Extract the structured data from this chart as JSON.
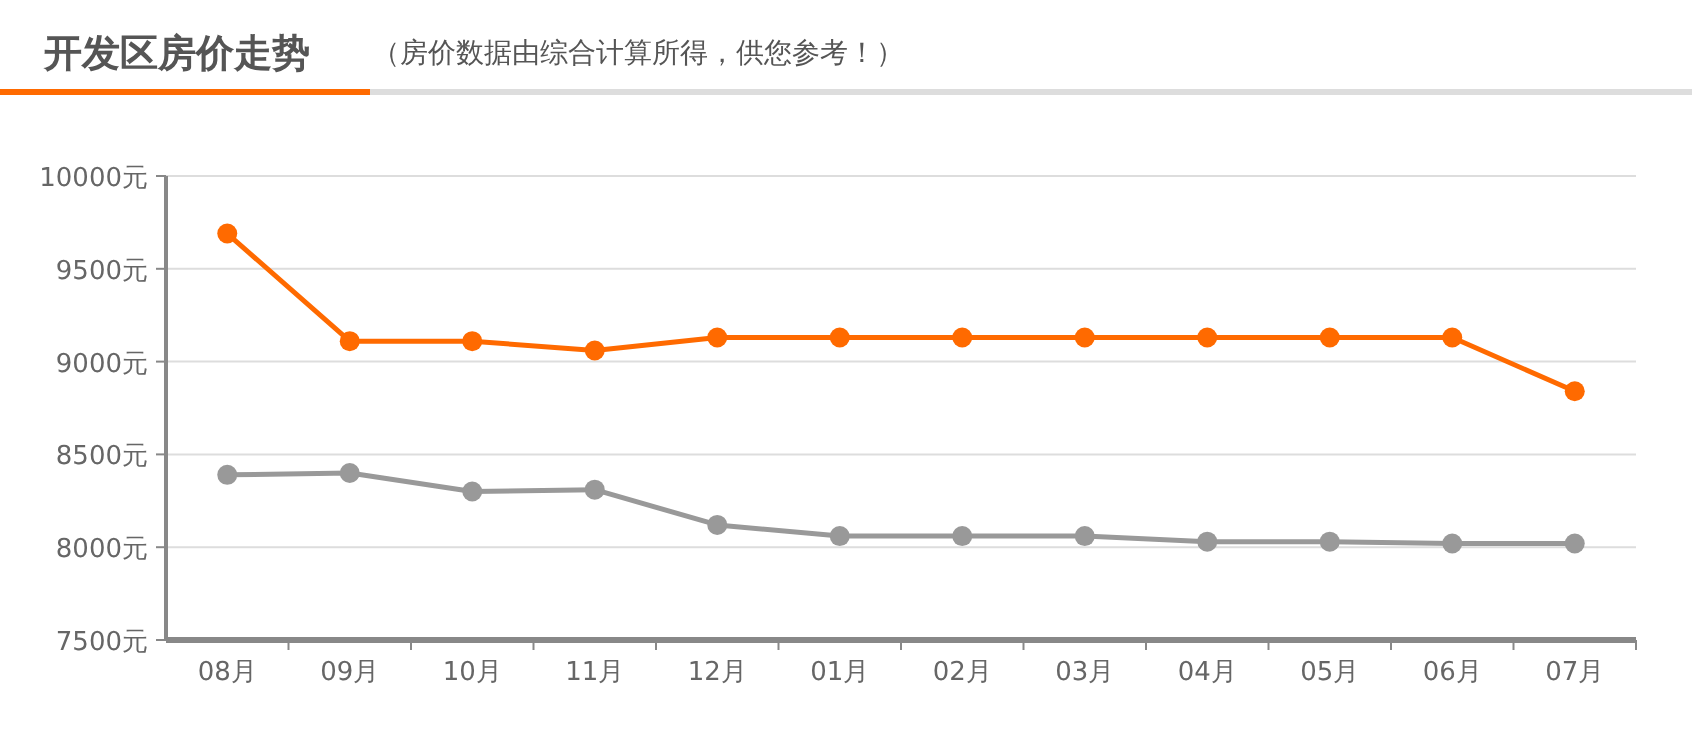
{
  "chart_data": {
    "type": "line",
    "title": "开发区房价走势",
    "subtitle": "（房价数据由综合计算所得，供您参考！）",
    "categories": [
      "08月",
      "09月",
      "10月",
      "11月",
      "12月",
      "01月",
      "02月",
      "03月",
      "04月",
      "05月",
      "06月",
      "07月"
    ],
    "series": [
      {
        "color": "#ff6a00",
        "values": [
          9690,
          9110,
          9110,
          9060,
          9130,
          9130,
          9130,
          9130,
          9130,
          9130,
          9130,
          8840
        ]
      },
      {
        "color": "#999999",
        "values": [
          8390,
          8400,
          8300,
          8310,
          8120,
          8060,
          8060,
          8060,
          8030,
          8030,
          8020,
          8020
        ]
      }
    ],
    "ylim": [
      7500,
      10000
    ],
    "yticks": [
      {
        "value": 7500,
        "label": "7500元"
      },
      {
        "value": 8000,
        "label": "8000元"
      },
      {
        "value": 8500,
        "label": "8500元"
      },
      {
        "value": 9000,
        "label": "9000元"
      },
      {
        "value": 9500,
        "label": "9500元"
      },
      {
        "value": 10000,
        "label": "10000元"
      }
    ],
    "grid": "y",
    "marker": "circle",
    "line_style": "solid"
  }
}
